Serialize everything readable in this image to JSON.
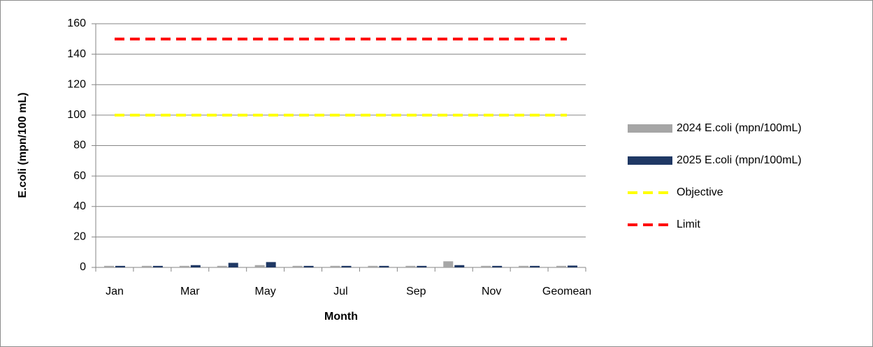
{
  "chart_data": {
    "type": "bar",
    "xlabel": "Month",
    "ylabel": "E.coli (mpn/100 mL)",
    "categories": [
      "Jan",
      null,
      "Mar",
      null,
      "May",
      null,
      "Jul",
      null,
      "Sep",
      null,
      "Nov",
      null,
      "Geomean"
    ],
    "series": [
      {
        "name": "2024 E.coli (mpn/100mL)",
        "type": "bar",
        "color": "#a6a6a6",
        "values": [
          1,
          1,
          1,
          1,
          1.5,
          1,
          1,
          1,
          1,
          4,
          1,
          1,
          1
        ]
      },
      {
        "name": "2025 E.coli (mpn/100mL)",
        "type": "bar",
        "color": "#1f3864",
        "values": [
          1,
          1,
          1.5,
          3,
          3.5,
          1,
          1,
          1,
          1,
          1.5,
          1,
          1,
          1.2
        ]
      },
      {
        "name": "Objective",
        "type": "line",
        "color": "#ffff00",
        "values": [
          100,
          100,
          100,
          100,
          100,
          100,
          100,
          100,
          100,
          100,
          100,
          100,
          100
        ]
      },
      {
        "name": "Limit",
        "type": "line",
        "color": "#ff0000",
        "values": [
          150,
          150,
          150,
          150,
          150,
          150,
          150,
          150,
          150,
          150,
          150,
          150,
          150
        ]
      }
    ],
    "ylim": [
      0,
      160
    ],
    "yticks": [
      0,
      20,
      40,
      60,
      80,
      100,
      120,
      140,
      160
    ],
    "grid": true,
    "legend": "right"
  }
}
